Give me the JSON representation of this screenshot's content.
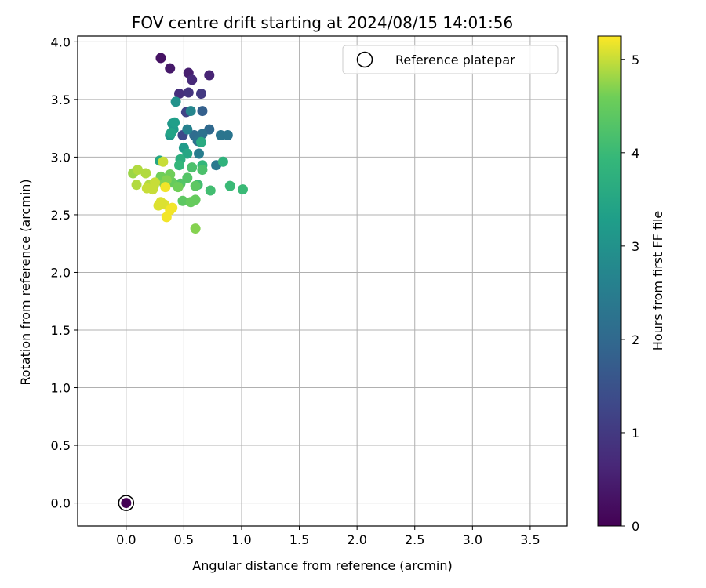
{
  "chart_data": {
    "type": "scatter",
    "title": "FOV centre drift starting at 2024/08/15 14:01:56",
    "xlabel": "Angular distance from reference (arcmin)",
    "ylabel": "Rotation from reference (arcmin)",
    "xlim": [
      -0.42,
      3.82
    ],
    "ylim": [
      -0.2,
      4.05
    ],
    "xticks": [
      0.0,
      0.5,
      1.0,
      1.5,
      2.0,
      2.5,
      3.0,
      3.5
    ],
    "xtick_labels": [
      "0.0",
      "0.5",
      "1.0",
      "1.5",
      "2.0",
      "2.5",
      "3.0",
      "3.5"
    ],
    "yticks": [
      0.0,
      0.5,
      1.0,
      1.5,
      2.0,
      2.5,
      3.0,
      3.5,
      4.0
    ],
    "ytick_labels": [
      "0.0",
      "0.5",
      "1.0",
      "1.5",
      "2.0",
      "2.5",
      "3.0",
      "3.5",
      "4.0"
    ],
    "grid": true,
    "legend": {
      "position": "top-right",
      "label": "Reference platepar"
    },
    "colorbar": {
      "label": "Hours from first FF file",
      "range": [
        0,
        5.25
      ],
      "ticks": [
        0,
        1,
        2,
        3,
        4,
        5
      ],
      "tick_labels": [
        "0",
        "1",
        "2",
        "3",
        "4",
        "5"
      ],
      "colormap": "viridis"
    },
    "reference_point": {
      "x": 0.0,
      "y": 0.0,
      "hours": 0.0
    },
    "points": [
      {
        "x": 0.3,
        "y": 3.86,
        "c": 0.3
      },
      {
        "x": 0.38,
        "y": 3.77,
        "c": 0.4
      },
      {
        "x": 0.54,
        "y": 3.73,
        "c": 0.5
      },
      {
        "x": 0.72,
        "y": 3.71,
        "c": 0.6
      },
      {
        "x": 0.57,
        "y": 3.67,
        "c": 0.7
      },
      {
        "x": 0.46,
        "y": 3.55,
        "c": 0.8
      },
      {
        "x": 0.54,
        "y": 3.56,
        "c": 0.9
      },
      {
        "x": 0.65,
        "y": 3.55,
        "c": 1.0
      },
      {
        "x": 0.52,
        "y": 3.39,
        "c": 1.2
      },
      {
        "x": 0.49,
        "y": 3.19,
        "c": 1.3
      },
      {
        "x": 0.66,
        "y": 3.4,
        "c": 1.8
      },
      {
        "x": 0.72,
        "y": 3.24,
        "c": 2.0
      },
      {
        "x": 0.59,
        "y": 3.19,
        "c": 2.1
      },
      {
        "x": 0.62,
        "y": 3.14,
        "c": 2.2
      },
      {
        "x": 0.66,
        "y": 3.2,
        "c": 2.2
      },
      {
        "x": 0.82,
        "y": 3.19,
        "c": 2.3
      },
      {
        "x": 0.88,
        "y": 3.19,
        "c": 2.3
      },
      {
        "x": 0.78,
        "y": 2.93,
        "c": 2.4
      },
      {
        "x": 0.63,
        "y": 3.03,
        "c": 2.5
      },
      {
        "x": 0.53,
        "y": 3.24,
        "c": 2.6
      },
      {
        "x": 0.56,
        "y": 3.4,
        "c": 2.7
      },
      {
        "x": 0.43,
        "y": 3.48,
        "c": 3.0
      },
      {
        "x": 0.4,
        "y": 3.29,
        "c": 3.1
      },
      {
        "x": 0.38,
        "y": 3.19,
        "c": 3.1
      },
      {
        "x": 0.41,
        "y": 3.24,
        "c": 3.2
      },
      {
        "x": 0.5,
        "y": 3.08,
        "c": 3.2
      },
      {
        "x": 0.42,
        "y": 3.3,
        "c": 3.3
      },
      {
        "x": 0.39,
        "y": 3.21,
        "c": 3.4
      },
      {
        "x": 0.29,
        "y": 2.97,
        "c": 3.5
      },
      {
        "x": 0.53,
        "y": 3.03,
        "c": 3.5
      },
      {
        "x": 0.65,
        "y": 3.13,
        "c": 3.6
      },
      {
        "x": 0.47,
        "y": 2.98,
        "c": 3.7
      },
      {
        "x": 0.84,
        "y": 2.96,
        "c": 3.8
      },
      {
        "x": 0.46,
        "y": 2.93,
        "c": 3.9
      },
      {
        "x": 0.66,
        "y": 2.93,
        "c": 3.9
      },
      {
        "x": 0.9,
        "y": 2.75,
        "c": 4.0
      },
      {
        "x": 1.01,
        "y": 2.72,
        "c": 4.0
      },
      {
        "x": 0.73,
        "y": 2.71,
        "c": 4.1
      },
      {
        "x": 0.62,
        "y": 2.76,
        "c": 4.1
      },
      {
        "x": 0.57,
        "y": 2.91,
        "c": 4.2
      },
      {
        "x": 0.66,
        "y": 2.89,
        "c": 4.2
      },
      {
        "x": 0.53,
        "y": 2.82,
        "c": 4.3
      },
      {
        "x": 0.47,
        "y": 2.77,
        "c": 4.3
      },
      {
        "x": 0.6,
        "y": 2.75,
        "c": 4.4
      },
      {
        "x": 0.49,
        "y": 2.62,
        "c": 4.4
      },
      {
        "x": 0.56,
        "y": 2.61,
        "c": 4.5
      },
      {
        "x": 0.6,
        "y": 2.63,
        "c": 4.5
      },
      {
        "x": 0.4,
        "y": 2.78,
        "c": 4.5
      },
      {
        "x": 0.3,
        "y": 2.83,
        "c": 4.6
      },
      {
        "x": 0.38,
        "y": 2.85,
        "c": 4.6
      },
      {
        "x": 0.45,
        "y": 2.74,
        "c": 4.6
      },
      {
        "x": 0.6,
        "y": 2.38,
        "c": 4.7
      },
      {
        "x": 0.35,
        "y": 2.8,
        "c": 4.7
      },
      {
        "x": 0.33,
        "y": 2.77,
        "c": 4.7
      },
      {
        "x": 0.24,
        "y": 2.75,
        "c": 4.8
      },
      {
        "x": 0.06,
        "y": 2.86,
        "c": 4.8
      },
      {
        "x": 0.17,
        "y": 2.86,
        "c": 4.9
      },
      {
        "x": 0.1,
        "y": 2.89,
        "c": 4.9
      },
      {
        "x": 0.09,
        "y": 2.76,
        "c": 4.9
      },
      {
        "x": 0.2,
        "y": 2.76,
        "c": 4.9
      },
      {
        "x": 0.23,
        "y": 2.72,
        "c": 5.0
      },
      {
        "x": 0.18,
        "y": 2.73,
        "c": 5.0
      },
      {
        "x": 0.25,
        "y": 2.78,
        "c": 5.0
      },
      {
        "x": 0.32,
        "y": 2.96,
        "c": 5.0
      },
      {
        "x": 0.28,
        "y": 2.58,
        "c": 5.1
      },
      {
        "x": 0.33,
        "y": 2.59,
        "c": 5.1
      },
      {
        "x": 0.3,
        "y": 2.61,
        "c": 5.1
      },
      {
        "x": 0.38,
        "y": 2.54,
        "c": 5.2
      },
      {
        "x": 0.4,
        "y": 2.56,
        "c": 5.2
      },
      {
        "x": 0.35,
        "y": 2.48,
        "c": 5.2
      },
      {
        "x": 0.34,
        "y": 2.74,
        "c": 5.2
      }
    ]
  }
}
